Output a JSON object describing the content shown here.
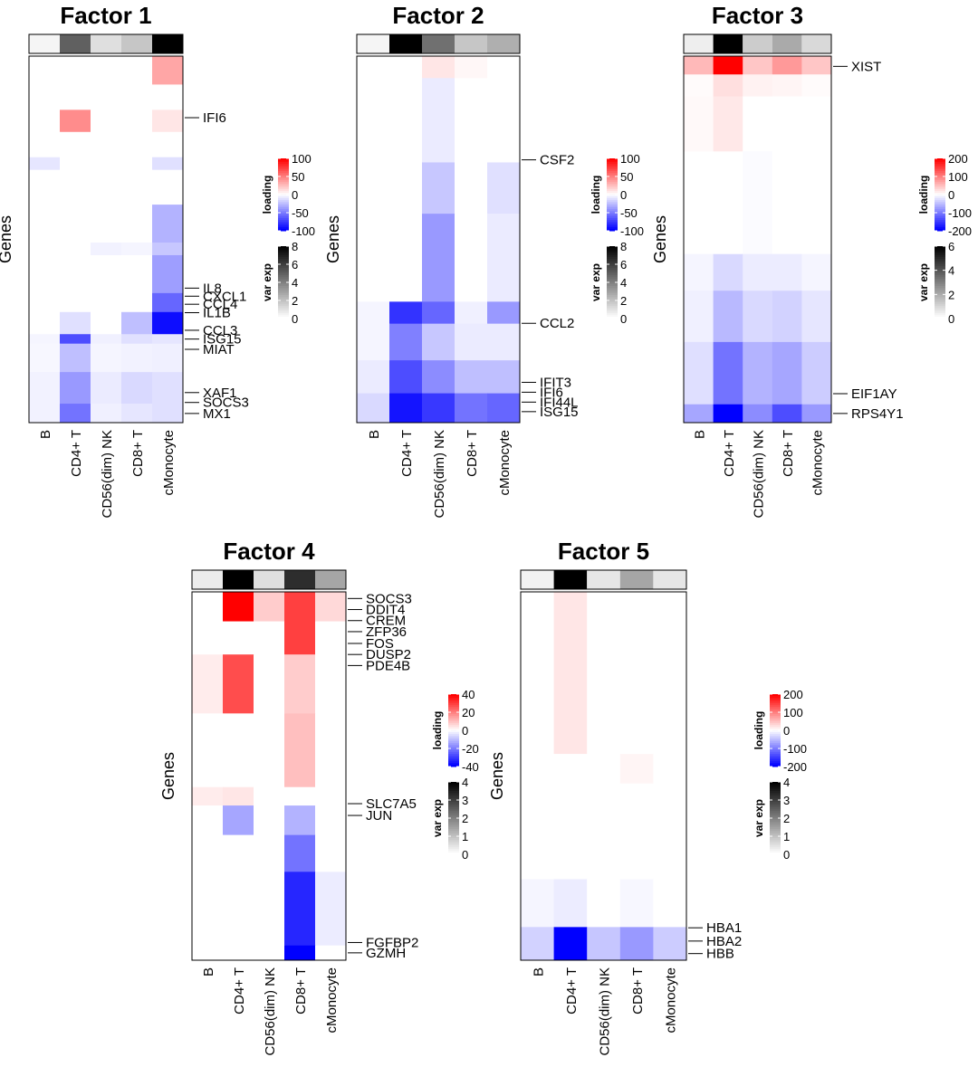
{
  "figure": {
    "y_axis_label": "Genes",
    "cell_types": [
      "B",
      "CD4+ T",
      "CD56(dim) NK",
      "CD8+ T",
      "cMonocyte"
    ],
    "colors": {
      "positive": "#ff0000",
      "zero": "#ffffff",
      "negative": "#0000ff",
      "var_exp": "#000000",
      "frame": "#000000"
    }
  },
  "chart_data": [
    {
      "type": "heatmap",
      "title": "Factor 1",
      "x_categories": [
        "B",
        "CD4+ T",
        "CD56(dim) NK",
        "CD8+ T",
        "cMonocyte"
      ],
      "ylabel": "Genes",
      "var_exp": [
        0.3,
        5.0,
        1.0,
        1.8,
        8.0
      ],
      "var_exp_legend": {
        "title": "var exp",
        "max": 8,
        "ticks": [
          8,
          6,
          4,
          2,
          0
        ]
      },
      "loading_legend": {
        "title": "loading",
        "max": 100,
        "ticks": [
          100,
          50,
          0,
          -50,
          -100
        ]
      },
      "rows": [
        {
          "values": [
            0,
            0,
            0,
            0,
            35
          ],
          "span": 0.09
        },
        {
          "values": [
            0,
            0,
            0,
            0,
            0
          ],
          "span": 0.08
        },
        {
          "values": [
            0,
            45,
            0,
            0,
            10
          ],
          "span": 0.07
        },
        {
          "values": [
            0,
            0,
            0,
            0,
            0
          ],
          "span": 0.08
        },
        {
          "values": [
            -10,
            0,
            0,
            0,
            -12
          ],
          "span": 0.04
        },
        {
          "values": [
            0,
            0,
            0,
            0,
            0
          ],
          "span": 0.11
        },
        {
          "values": [
            0,
            0,
            0,
            0,
            -30
          ],
          "span": 0.12
        },
        {
          "values": [
            0,
            0,
            -5,
            -4,
            -22
          ],
          "span": 0.04
        },
        {
          "values": [
            0,
            0,
            0,
            0,
            -38
          ],
          "span": 0.12
        },
        {
          "values": [
            0,
            0,
            0,
            0,
            -60
          ],
          "span": 0.06
        },
        {
          "values": [
            0,
            -12,
            0,
            -25,
            -95
          ],
          "span": 0.07
        },
        {
          "values": [
            -4,
            -70,
            -6,
            -12,
            -10
          ],
          "span": 0.03
        },
        {
          "values": [
            -3,
            -25,
            -4,
            -5,
            -6
          ],
          "span": 0.09
        },
        {
          "values": [
            -5,
            -40,
            -8,
            -15,
            -12
          ],
          "span": 0.1
        },
        {
          "values": [
            -5,
            -55,
            -6,
            -10,
            -12
          ],
          "span": 0.06
        }
      ],
      "labels": [
        {
          "text": "IFI6",
          "pos": 0.168
        },
        {
          "text": "IL8",
          "pos": 0.633
        },
        {
          "text": "CXCL1",
          "pos": 0.655
        },
        {
          "text": "CCL4",
          "pos": 0.677
        },
        {
          "text": "IL1B",
          "pos": 0.7
        },
        {
          "text": "CCL3",
          "pos": 0.748
        },
        {
          "text": "ISG15",
          "pos": 0.772
        },
        {
          "text": "MIAT",
          "pos": 0.8
        },
        {
          "text": "XAF1",
          "pos": 0.918
        },
        {
          "text": "SOCS3",
          "pos": 0.945
        },
        {
          "text": "MX1",
          "pos": 0.975
        }
      ]
    },
    {
      "type": "heatmap",
      "title": "Factor 2",
      "x_categories": [
        "B",
        "CD4+ T",
        "CD56(dim) NK",
        "CD8+ T",
        "cMonocyte"
      ],
      "ylabel": "Genes",
      "var_exp": [
        0.3,
        8.0,
        4.5,
        1.8,
        2.5
      ],
      "var_exp_legend": {
        "title": "var exp",
        "max": 8,
        "ticks": [
          8,
          6,
          4,
          2,
          0
        ]
      },
      "loading_legend": {
        "title": "loading",
        "max": 100,
        "ticks": [
          100,
          50,
          0,
          -50,
          -100
        ]
      },
      "rows": [
        {
          "values": [
            0,
            0,
            10,
            3,
            0
          ],
          "span": 0.06
        },
        {
          "values": [
            0,
            0,
            -8,
            0,
            0
          ],
          "span": 0.23
        },
        {
          "values": [
            0,
            0,
            -22,
            0,
            -12
          ],
          "span": 0.14
        },
        {
          "values": [
            0,
            0,
            -40,
            0,
            -8
          ],
          "span": 0.24
        },
        {
          "values": [
            -4,
            -80,
            -60,
            -6,
            -40
          ],
          "span": 0.06
        },
        {
          "values": [
            -4,
            -50,
            -22,
            -8,
            -8
          ],
          "span": 0.1
        },
        {
          "values": [
            -8,
            -70,
            -45,
            -25,
            -25
          ],
          "span": 0.09
        },
        {
          "values": [
            -15,
            -92,
            -78,
            -55,
            -60
          ],
          "span": 0.08
        }
      ],
      "labels": [
        {
          "text": "CSF2",
          "pos": 0.283
        },
        {
          "text": "CCL2",
          "pos": 0.729
        },
        {
          "text": "IFIT3",
          "pos": 0.89
        },
        {
          "text": "IFI6",
          "pos": 0.917
        },
        {
          "text": "IFI44L",
          "pos": 0.944
        },
        {
          "text": "ISG15",
          "pos": 0.97
        }
      ]
    },
    {
      "type": "heatmap",
      "title": "Factor 3",
      "x_categories": [
        "B",
        "CD4+ T",
        "CD56(dim) NK",
        "CD8+ T",
        "cMonocyte"
      ],
      "ylabel": "Genes",
      "var_exp": [
        0.4,
        6.0,
        1.2,
        2.0,
        0.9
      ],
      "var_exp_legend": {
        "title": "var exp",
        "max": 6,
        "ticks": [
          6,
          4,
          2,
          0
        ]
      },
      "loading_legend": {
        "title": "loading",
        "max": 200,
        "ticks": [
          200,
          100,
          0,
          -100,
          -200
        ]
      },
      "rows": [
        {
          "values": [
            55,
            200,
            45,
            80,
            45
          ],
          "span": 0.05
        },
        {
          "values": [
            3,
            25,
            10,
            8,
            3
          ],
          "span": 0.06
        },
        {
          "values": [
            5,
            18,
            0,
            0,
            0
          ],
          "span": 0.15
        },
        {
          "values": [
            0,
            0,
            -3,
            0,
            0
          ],
          "span": 0.28
        },
        {
          "values": [
            -8,
            -30,
            -15,
            -15,
            -8
          ],
          "span": 0.1
        },
        {
          "values": [
            -12,
            -55,
            -30,
            -35,
            -20
          ],
          "span": 0.14
        },
        {
          "values": [
            -25,
            -110,
            -60,
            -70,
            -40
          ],
          "span": 0.17
        },
        {
          "values": [
            -70,
            -200,
            -90,
            -140,
            -80
          ],
          "span": 0.05
        }
      ],
      "labels": [
        {
          "text": "XIST",
          "pos": 0.028
        },
        {
          "text": "EIF1AY",
          "pos": 0.921
        },
        {
          "text": "RPS4Y1",
          "pos": 0.975
        }
      ]
    },
    {
      "type": "heatmap",
      "title": "Factor 4",
      "x_categories": [
        "B",
        "CD4+ T",
        "CD56(dim) NK",
        "CD8+ T",
        "cMonocyte"
      ],
      "ylabel": "Genes",
      "var_exp": [
        0.3,
        4.0,
        0.5,
        3.3,
        1.4
      ],
      "var_exp_legend": {
        "title": "var exp",
        "max": 4,
        "ticks": [
          4,
          3,
          2,
          1,
          0
        ]
      },
      "loading_legend": {
        "title": "loading",
        "max": 40,
        "ticks": [
          40,
          20,
          0,
          -20,
          -40
        ]
      },
      "rows": [
        {
          "values": [
            0,
            42,
            8,
            30,
            6
          ],
          "span": 0.08
        },
        {
          "values": [
            0,
            0,
            0,
            30,
            0
          ],
          "span": 0.09
        },
        {
          "values": [
            3,
            28,
            0,
            8,
            0
          ],
          "span": 0.16
        },
        {
          "values": [
            0,
            0,
            0,
            10,
            0
          ],
          "span": 0.2
        },
        {
          "values": [
            3,
            4,
            0,
            0,
            0
          ],
          "span": 0.05
        },
        {
          "values": [
            0,
            -14,
            0,
            -12,
            0
          ],
          "span": 0.08
        },
        {
          "values": [
            0,
            0,
            0,
            -22,
            0
          ],
          "span": 0.1
        },
        {
          "values": [
            0,
            0,
            0,
            -34,
            -3
          ],
          "span": 0.2
        },
        {
          "values": [
            0,
            0,
            0,
            -48,
            0
          ],
          "span": 0.04
        }
      ],
      "labels": [
        {
          "text": "SOCS3",
          "pos": 0.018
        },
        {
          "text": "DDIT4",
          "pos": 0.048
        },
        {
          "text": "CREM",
          "pos": 0.078
        },
        {
          "text": "ZFP36",
          "pos": 0.108
        },
        {
          "text": "FOS",
          "pos": 0.14
        },
        {
          "text": "DUSP2",
          "pos": 0.17
        },
        {
          "text": "PDE4B",
          "pos": 0.2
        },
        {
          "text": "SLC7A5",
          "pos": 0.575
        },
        {
          "text": "JUN",
          "pos": 0.607
        },
        {
          "text": "FGFBP2",
          "pos": 0.952
        },
        {
          "text": "GZMH",
          "pos": 0.98
        }
      ]
    },
    {
      "type": "heatmap",
      "title": "Factor 5",
      "x_categories": [
        "B",
        "CD4+ T",
        "CD56(dim) NK",
        "CD8+ T",
        "cMonocyte"
      ],
      "ylabel": "Genes",
      "var_exp": [
        0.2,
        4.0,
        0.4,
        1.4,
        0.4
      ],
      "var_exp_legend": {
        "title": "var exp",
        "max": 4,
        "ticks": [
          4,
          3,
          2,
          1,
          0
        ]
      },
      "loading_legend": {
        "title": "loading",
        "max": 200,
        "ticks": [
          200,
          100,
          0,
          -100,
          -200
        ]
      },
      "rows": [
        {
          "values": [
            0,
            20,
            0,
            0,
            0
          ],
          "span": 0.44
        },
        {
          "values": [
            0,
            0,
            0,
            8,
            0
          ],
          "span": 0.08
        },
        {
          "values": [
            0,
            0,
            0,
            0,
            0
          ],
          "span": 0.26
        },
        {
          "values": [
            -8,
            -15,
            0,
            -6,
            0
          ],
          "span": 0.13
        },
        {
          "values": [
            -35,
            -200,
            -45,
            -80,
            -40
          ],
          "span": 0.09
        }
      ],
      "labels": [
        {
          "text": "HBA1",
          "pos": 0.912
        },
        {
          "text": "HBA2",
          "pos": 0.948
        },
        {
          "text": "HBB",
          "pos": 0.982
        }
      ]
    }
  ]
}
